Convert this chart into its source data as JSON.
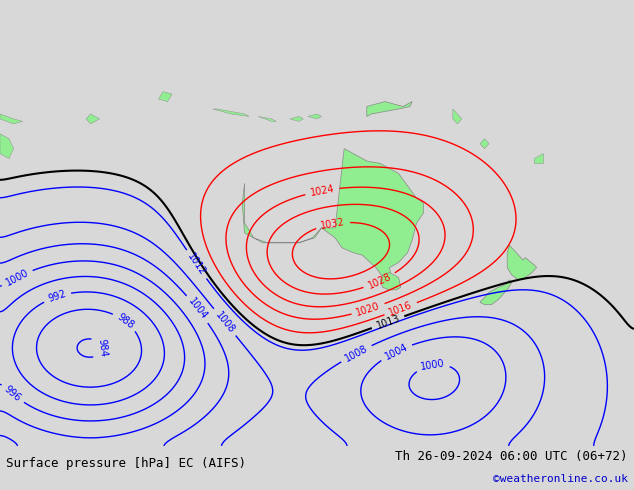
{
  "title_left": "Surface pressure [hPa] EC (AIFS)",
  "title_right": "Th 26-09-2024 06:00 UTC (06+72)",
  "credit": "©weatheronline.co.uk",
  "background_color": "#d8d8d8",
  "land_color": "#90ee90",
  "ocean_color": "#d0d0d0",
  "fig_width": 6.34,
  "fig_height": 4.9,
  "dpi": 100,
  "bottom_bar_color": "#c8c8c8",
  "text_color": "#000000",
  "credit_color": "#0000cc"
}
